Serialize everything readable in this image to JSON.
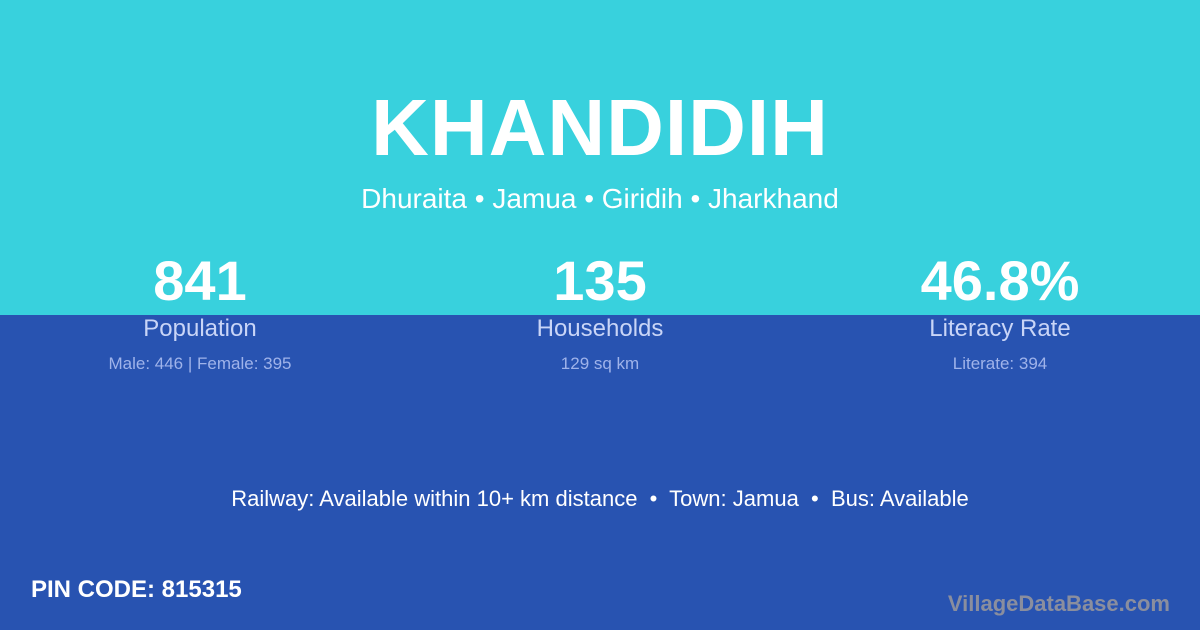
{
  "colors": {
    "top_background": "#38d1dd",
    "bottom_background": "#2853b1"
  },
  "village": {
    "name": "KHANDIDIH",
    "location": "Dhuraita • Jamua • Giridih • Jharkhand"
  },
  "stats": [
    {
      "value": "841",
      "label": "Population",
      "sub": "Male: 446 | Female: 395"
    },
    {
      "value": "135",
      "label": "Households",
      "sub": "129 sq km"
    },
    {
      "value": "46.8%",
      "label": "Literacy Rate",
      "sub": "Literate: 394"
    }
  ],
  "amenities": "Railway: Available within 10+ km distance  •  Town: Jamua  •  Bus: Available",
  "pin_code": "PIN CODE: 815315",
  "watermark": "VillageDataBase.com"
}
